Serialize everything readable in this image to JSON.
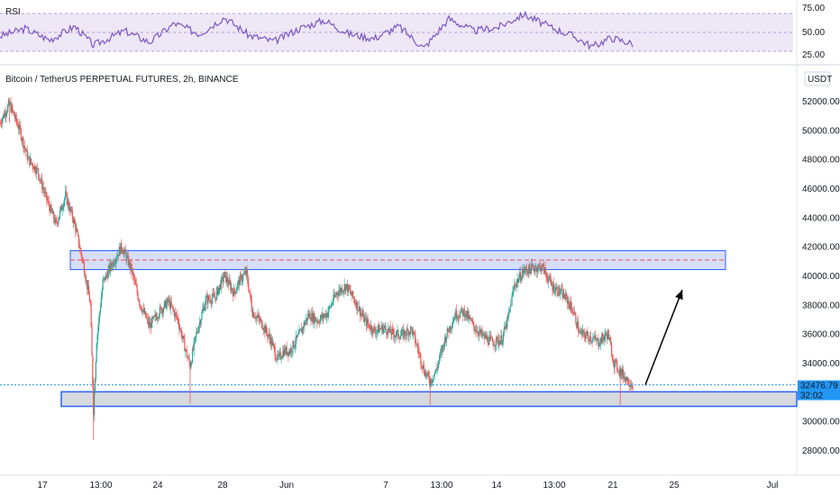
{
  "chart_data": {
    "type": "candlestick",
    "title": "Bitcoin / TetherUS PERPETUAL FUTURES, 2h, BINANCE",
    "currency": "USDT",
    "x_tick_labels": [
      "17",
      "13:00",
      "24",
      "28",
      "Jun",
      "7",
      "13:00",
      "14",
      "13:00",
      "21",
      "25",
      "Jul"
    ],
    "y_ticks": [
      28000,
      30000,
      32000,
      34000,
      36000,
      38000,
      40000,
      42000,
      44000,
      46000,
      48000,
      50000,
      52000
    ],
    "y_tick_labels": [
      "28000.00",
      "30000.00",
      "32000.00",
      "34000.00",
      "36000.00",
      "38000.00",
      "40000.00",
      "42000.00",
      "44000.00",
      "46000.00",
      "48000.00",
      "50000.00",
      "52000.00"
    ],
    "ylim": [
      26500,
      54000
    ],
    "price_path": [
      [
        0,
        50500
      ],
      [
        3,
        51800
      ],
      [
        6,
        50200
      ],
      [
        9,
        48000
      ],
      [
        12,
        47200
      ],
      [
        15,
        45200
      ],
      [
        18,
        43500
      ],
      [
        21,
        45500
      ],
      [
        24,
        43500
      ],
      [
        27,
        40500
      ],
      [
        29,
        38000
      ],
      [
        30,
        30700
      ],
      [
        31,
        35500
      ],
      [
        33,
        39500
      ],
      [
        36,
        40800
      ],
      [
        39,
        42000
      ],
      [
        42,
        40500
      ],
      [
        45,
        38000
      ],
      [
        48,
        36500
      ],
      [
        51,
        37500
      ],
      [
        54,
        38200
      ],
      [
        57,
        37000
      ],
      [
        60,
        34500
      ],
      [
        61,
        33800
      ],
      [
        63,
        36000
      ],
      [
        66,
        38300
      ],
      [
        69,
        38500
      ],
      [
        72,
        40000
      ],
      [
        75,
        38800
      ],
      [
        77,
        39700
      ],
      [
        79,
        40200
      ],
      [
        81,
        37500
      ],
      [
        84,
        36700
      ],
      [
        87,
        35500
      ],
      [
        89,
        34200
      ],
      [
        91,
        34800
      ],
      [
        93,
        34800
      ],
      [
        96,
        35900
      ],
      [
        99,
        37300
      ],
      [
        102,
        36900
      ],
      [
        105,
        37400
      ],
      [
        108,
        38800
      ],
      [
        111,
        39300
      ],
      [
        114,
        38200
      ],
      [
        117,
        36900
      ],
      [
        120,
        36200
      ],
      [
        123,
        36400
      ],
      [
        126,
        36000
      ],
      [
        129,
        35900
      ],
      [
        132,
        36300
      ],
      [
        134,
        35000
      ],
      [
        136,
        33500
      ],
      [
        138,
        32700
      ],
      [
        140,
        33500
      ],
      [
        143,
        35800
      ],
      [
        146,
        37300
      ],
      [
        149,
        37500
      ],
      [
        152,
        36500
      ],
      [
        155,
        35800
      ],
      [
        158,
        35400
      ],
      [
        161,
        35600
      ],
      [
        163,
        37000
      ],
      [
        165,
        39300
      ],
      [
        168,
        40300
      ],
      [
        171,
        40500
      ],
      [
        174,
        40600
      ],
      [
        177,
        39300
      ],
      [
        180,
        38800
      ],
      [
        182,
        38300
      ],
      [
        184,
        37500
      ],
      [
        186,
        36000
      ],
      [
        189,
        35800
      ],
      [
        192,
        35400
      ],
      [
        195,
        36000
      ],
      [
        197,
        34000
      ],
      [
        199,
        33400
      ],
      [
        201,
        32900
      ],
      [
        203,
        32480
      ]
    ],
    "price_path_min": 30200,
    "price_path_max": 52200,
    "current_price": 32476.79,
    "current_price_label": "32476.79",
    "countdown": "32:02",
    "resistance_zone": [
      40400,
      41700
    ],
    "resistance_midline": 41050,
    "support_zone": [
      31000,
      32000
    ],
    "projection_target": 39000,
    "rsi": {
      "label": "RSI",
      "levels": [
        75,
        50,
        25
      ],
      "level_labels": [
        "75.00",
        "50.00",
        "25.00"
      ],
      "band": [
        30,
        70
      ],
      "path": [
        [
          0,
          45
        ],
        [
          8,
          55
        ],
        [
          16,
          40
        ],
        [
          24,
          58
        ],
        [
          30,
          33
        ],
        [
          40,
          52
        ],
        [
          48,
          37
        ],
        [
          56,
          62
        ],
        [
          64,
          48
        ],
        [
          72,
          70
        ],
        [
          80,
          46
        ],
        [
          88,
          38
        ],
        [
          96,
          55
        ],
        [
          104,
          66
        ],
        [
          112,
          48
        ],
        [
          120,
          42
        ],
        [
          128,
          58
        ],
        [
          136,
          29
        ],
        [
          144,
          68
        ],
        [
          152,
          52
        ],
        [
          160,
          57
        ],
        [
          168,
          74
        ],
        [
          176,
          58
        ],
        [
          184,
          45
        ],
        [
          190,
          31
        ],
        [
          196,
          43
        ],
        [
          203,
          35
        ]
      ]
    },
    "colors": {
      "up": "#26a69a",
      "down": "#ef5350",
      "rsi_line": "#7e57c2",
      "rsi_band": "#ede7f6",
      "resistance": "#c8d3f5",
      "support": "#d6d9de",
      "zone_border": "#2962ff",
      "price_tag": "#2196f3",
      "arrow": "#000000"
    }
  }
}
